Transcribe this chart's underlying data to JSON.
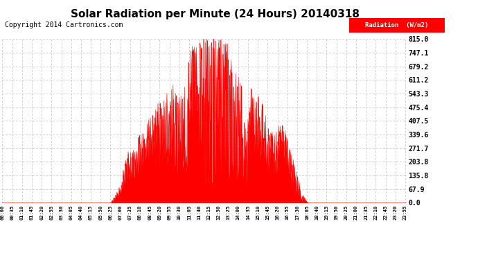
{
  "title": "Solar Radiation per Minute (24 Hours) 20140318",
  "copyright_text": "Copyright 2014 Cartronics.com",
  "legend_label": "Radiation  (W/m2)",
  "y_ticks": [
    0.0,
    67.9,
    135.8,
    203.8,
    271.7,
    339.6,
    407.5,
    475.4,
    543.3,
    611.2,
    679.2,
    747.1,
    815.0
  ],
  "y_max": 815.0,
  "y_min": 0.0,
  "fill_color": "#ff0000",
  "line_color": "#ff0000",
  "background_color": "#ffffff",
  "grid_color": "#bbbbbb",
  "dashed_line_color": "#ff0000",
  "title_fontsize": 11,
  "copyright_fontsize": 7,
  "tick_interval_minutes": 35
}
